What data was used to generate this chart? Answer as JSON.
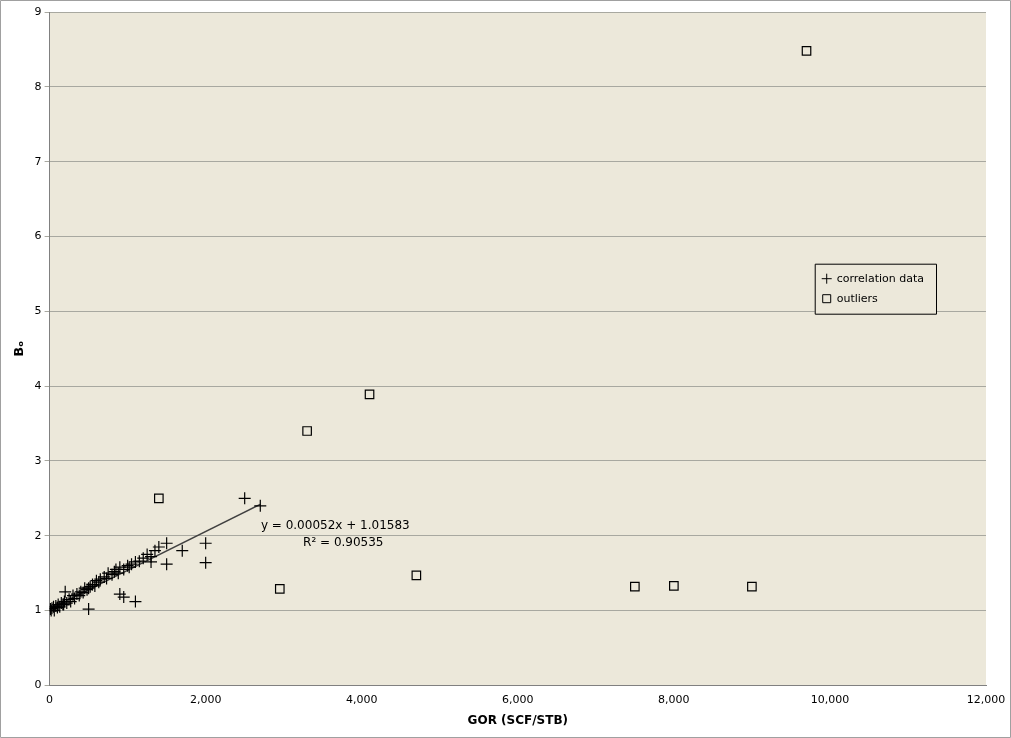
{
  "chart_data": {
    "type": "scatter",
    "xlabel": "GOR (SCF/STB)",
    "ylabel": "Bₒ",
    "xlim": [
      0,
      12000
    ],
    "ylim": [
      0,
      9
    ],
    "xticks": [
      0,
      {
        "value": 2000,
        "label": "2,000"
      },
      {
        "value": 4000,
        "label": "4,000"
      },
      {
        "value": 6000,
        "label": "6,000"
      },
      {
        "value": 8000,
        "label": "8,000"
      },
      {
        "value": 10000,
        "label": "10,000"
      },
      {
        "value": 12000,
        "label": "12,000"
      }
    ],
    "yticks": [
      0,
      1,
      2,
      3,
      4,
      5,
      6,
      7,
      8,
      9
    ],
    "grid": "y",
    "legend": "right",
    "series": [
      {
        "name": "correlation data",
        "color": "#000000",
        "marker": "cross",
        "x": [
          10,
          20,
          30,
          50,
          60,
          80,
          100,
          110,
          130,
          150,
          170,
          190,
          200,
          220,
          250,
          270,
          300,
          320,
          350,
          380,
          400,
          430,
          450,
          480,
          500,
          520,
          550,
          580,
          600,
          630,
          650,
          700,
          730,
          750,
          800,
          830,
          850,
          880,
          900,
          950,
          1000,
          1020,
          1050,
          1100,
          1150,
          1200,
          1250,
          1300,
          1350,
          1400,
          1500,
          1700,
          2000,
          2500,
          2700,
          180,
          500,
          900,
          950,
          1100,
          1300,
          1500,
          2000
        ],
        "values": [
          1.02,
          1.0,
          1.03,
          1.05,
          1.0,
          1.06,
          1.04,
          1.08,
          1.05,
          1.1,
          1.08,
          1.12,
          1.25,
          1.1,
          1.15,
          1.12,
          1.2,
          1.16,
          1.22,
          1.2,
          1.25,
          1.24,
          1.3,
          1.28,
          1.3,
          1.32,
          1.35,
          1.33,
          1.4,
          1.38,
          1.42,
          1.45,
          1.43,
          1.5,
          1.48,
          1.52,
          1.55,
          1.5,
          1.58,
          1.55,
          1.6,
          1.58,
          1.62,
          1.65,
          1.66,
          1.7,
          1.75,
          1.72,
          1.8,
          1.85,
          1.9,
          1.8,
          1.9,
          2.5,
          2.4,
          1.08,
          1.02,
          1.22,
          1.18,
          1.12,
          1.65,
          1.62,
          1.64
        ]
      },
      {
        "name": "outliers",
        "color": "#000000",
        "marker": "square",
        "x": [
          1400,
          2950,
          3300,
          4100,
          4700,
          7500,
          8000,
          9000,
          9700
        ],
        "values": [
          2.5,
          1.29,
          3.4,
          3.89,
          1.47,
          1.32,
          1.33,
          1.32,
          8.48
        ]
      },
      {
        "type": "line",
        "color": "#404040",
        "marker": "none",
        "x": [
          0,
          2700
        ],
        "values": [
          1.02,
          2.42
        ]
      }
    ],
    "annotations": [
      "y = 0.00052x + 1.01583",
      "R² = 0.90535"
    ]
  }
}
